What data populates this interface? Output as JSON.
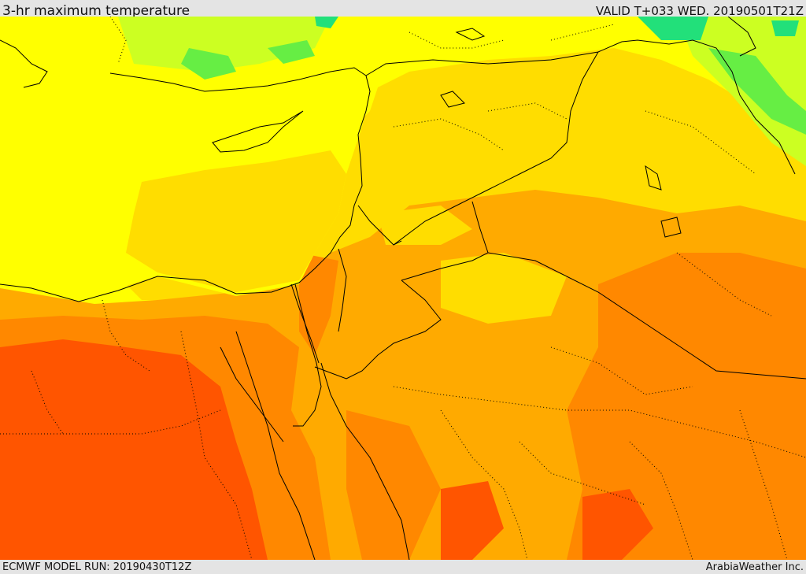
{
  "header": {
    "title": "3-hr maximum temperature",
    "valid_time": "VALID T+033 WED. 20190501T21Z"
  },
  "footer": {
    "model_run": "ECMWF MODEL RUN: 20190430T12Z",
    "credit": "ArabiaWeather Inc."
  },
  "map": {
    "field": "3-hr maximum temperature",
    "colors": {
      "green_dark": "#22e07a",
      "green": "#66ee44",
      "yellow_green": "#ccff22",
      "yellow": "#ffff00",
      "gold": "#ffdd00",
      "amber": "#ffaa00",
      "orange": "#ff8800",
      "red_orange": "#ff5500",
      "sea": "#ffff00",
      "border": "#000000"
    }
  }
}
